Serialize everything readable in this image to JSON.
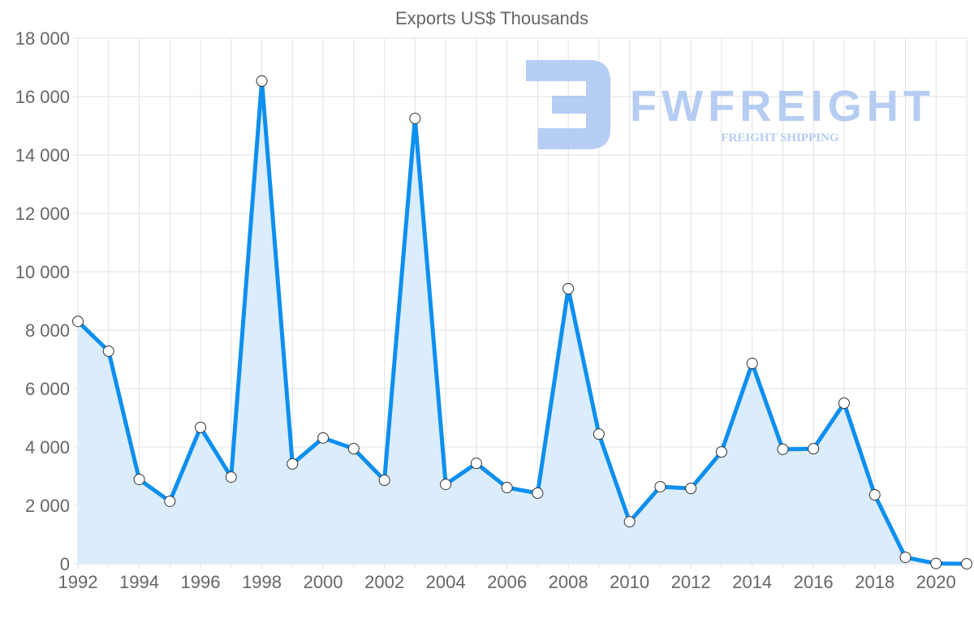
{
  "chart_data": {
    "type": "area",
    "title": "Exports US$ Thousands",
    "xlabel": "",
    "ylabel": "",
    "x": [
      1992,
      1993,
      1994,
      1995,
      1996,
      1997,
      1998,
      1999,
      2000,
      2001,
      2002,
      2003,
      2004,
      2005,
      2006,
      2007,
      2008,
      2009,
      2010,
      2011,
      2012,
      2013,
      2014,
      2015,
      2016,
      2017,
      2018,
      2019,
      2020,
      2021
    ],
    "series": [
      {
        "name": "Exports US$ Thousands",
        "values": [
          8300,
          7280,
          2890,
          2140,
          4670,
          2970,
          16530,
          3420,
          4310,
          3940,
          2860,
          15250,
          2720,
          3440,
          2610,
          2420,
          9420,
          4440,
          1440,
          2640,
          2580,
          3830,
          6860,
          3920,
          3940,
          5500,
          2360,
          220,
          10,
          0
        ]
      }
    ],
    "ylim": [
      0,
      18000
    ],
    "yticks": [
      0,
      2000,
      4000,
      6000,
      8000,
      10000,
      12000,
      14000,
      16000,
      18000
    ],
    "ytick_labels": [
      "0",
      "2 000",
      "4 000",
      "6 000",
      "8 000",
      "10 000",
      "12 000",
      "14 000",
      "16 000",
      "18 000"
    ],
    "xticks": [
      1992,
      1994,
      1996,
      1998,
      2000,
      2002,
      2004,
      2006,
      2008,
      2010,
      2012,
      2014,
      2016,
      2018,
      2020
    ],
    "xtick_labels": [
      "1992",
      "1994",
      "1996",
      "1998",
      "2000",
      "2002",
      "2004",
      "2006",
      "2008",
      "2010",
      "2012",
      "2014",
      "2016",
      "2018",
      "2020"
    ],
    "grid": true,
    "legend": "none",
    "line_color": "#0d8fef",
    "fill_color": "#dbecfc"
  },
  "watermark": {
    "name": "FWFREIGHT",
    "tagline": "FREIGHT SHIPPING",
    "color": "#a9c4f2"
  }
}
